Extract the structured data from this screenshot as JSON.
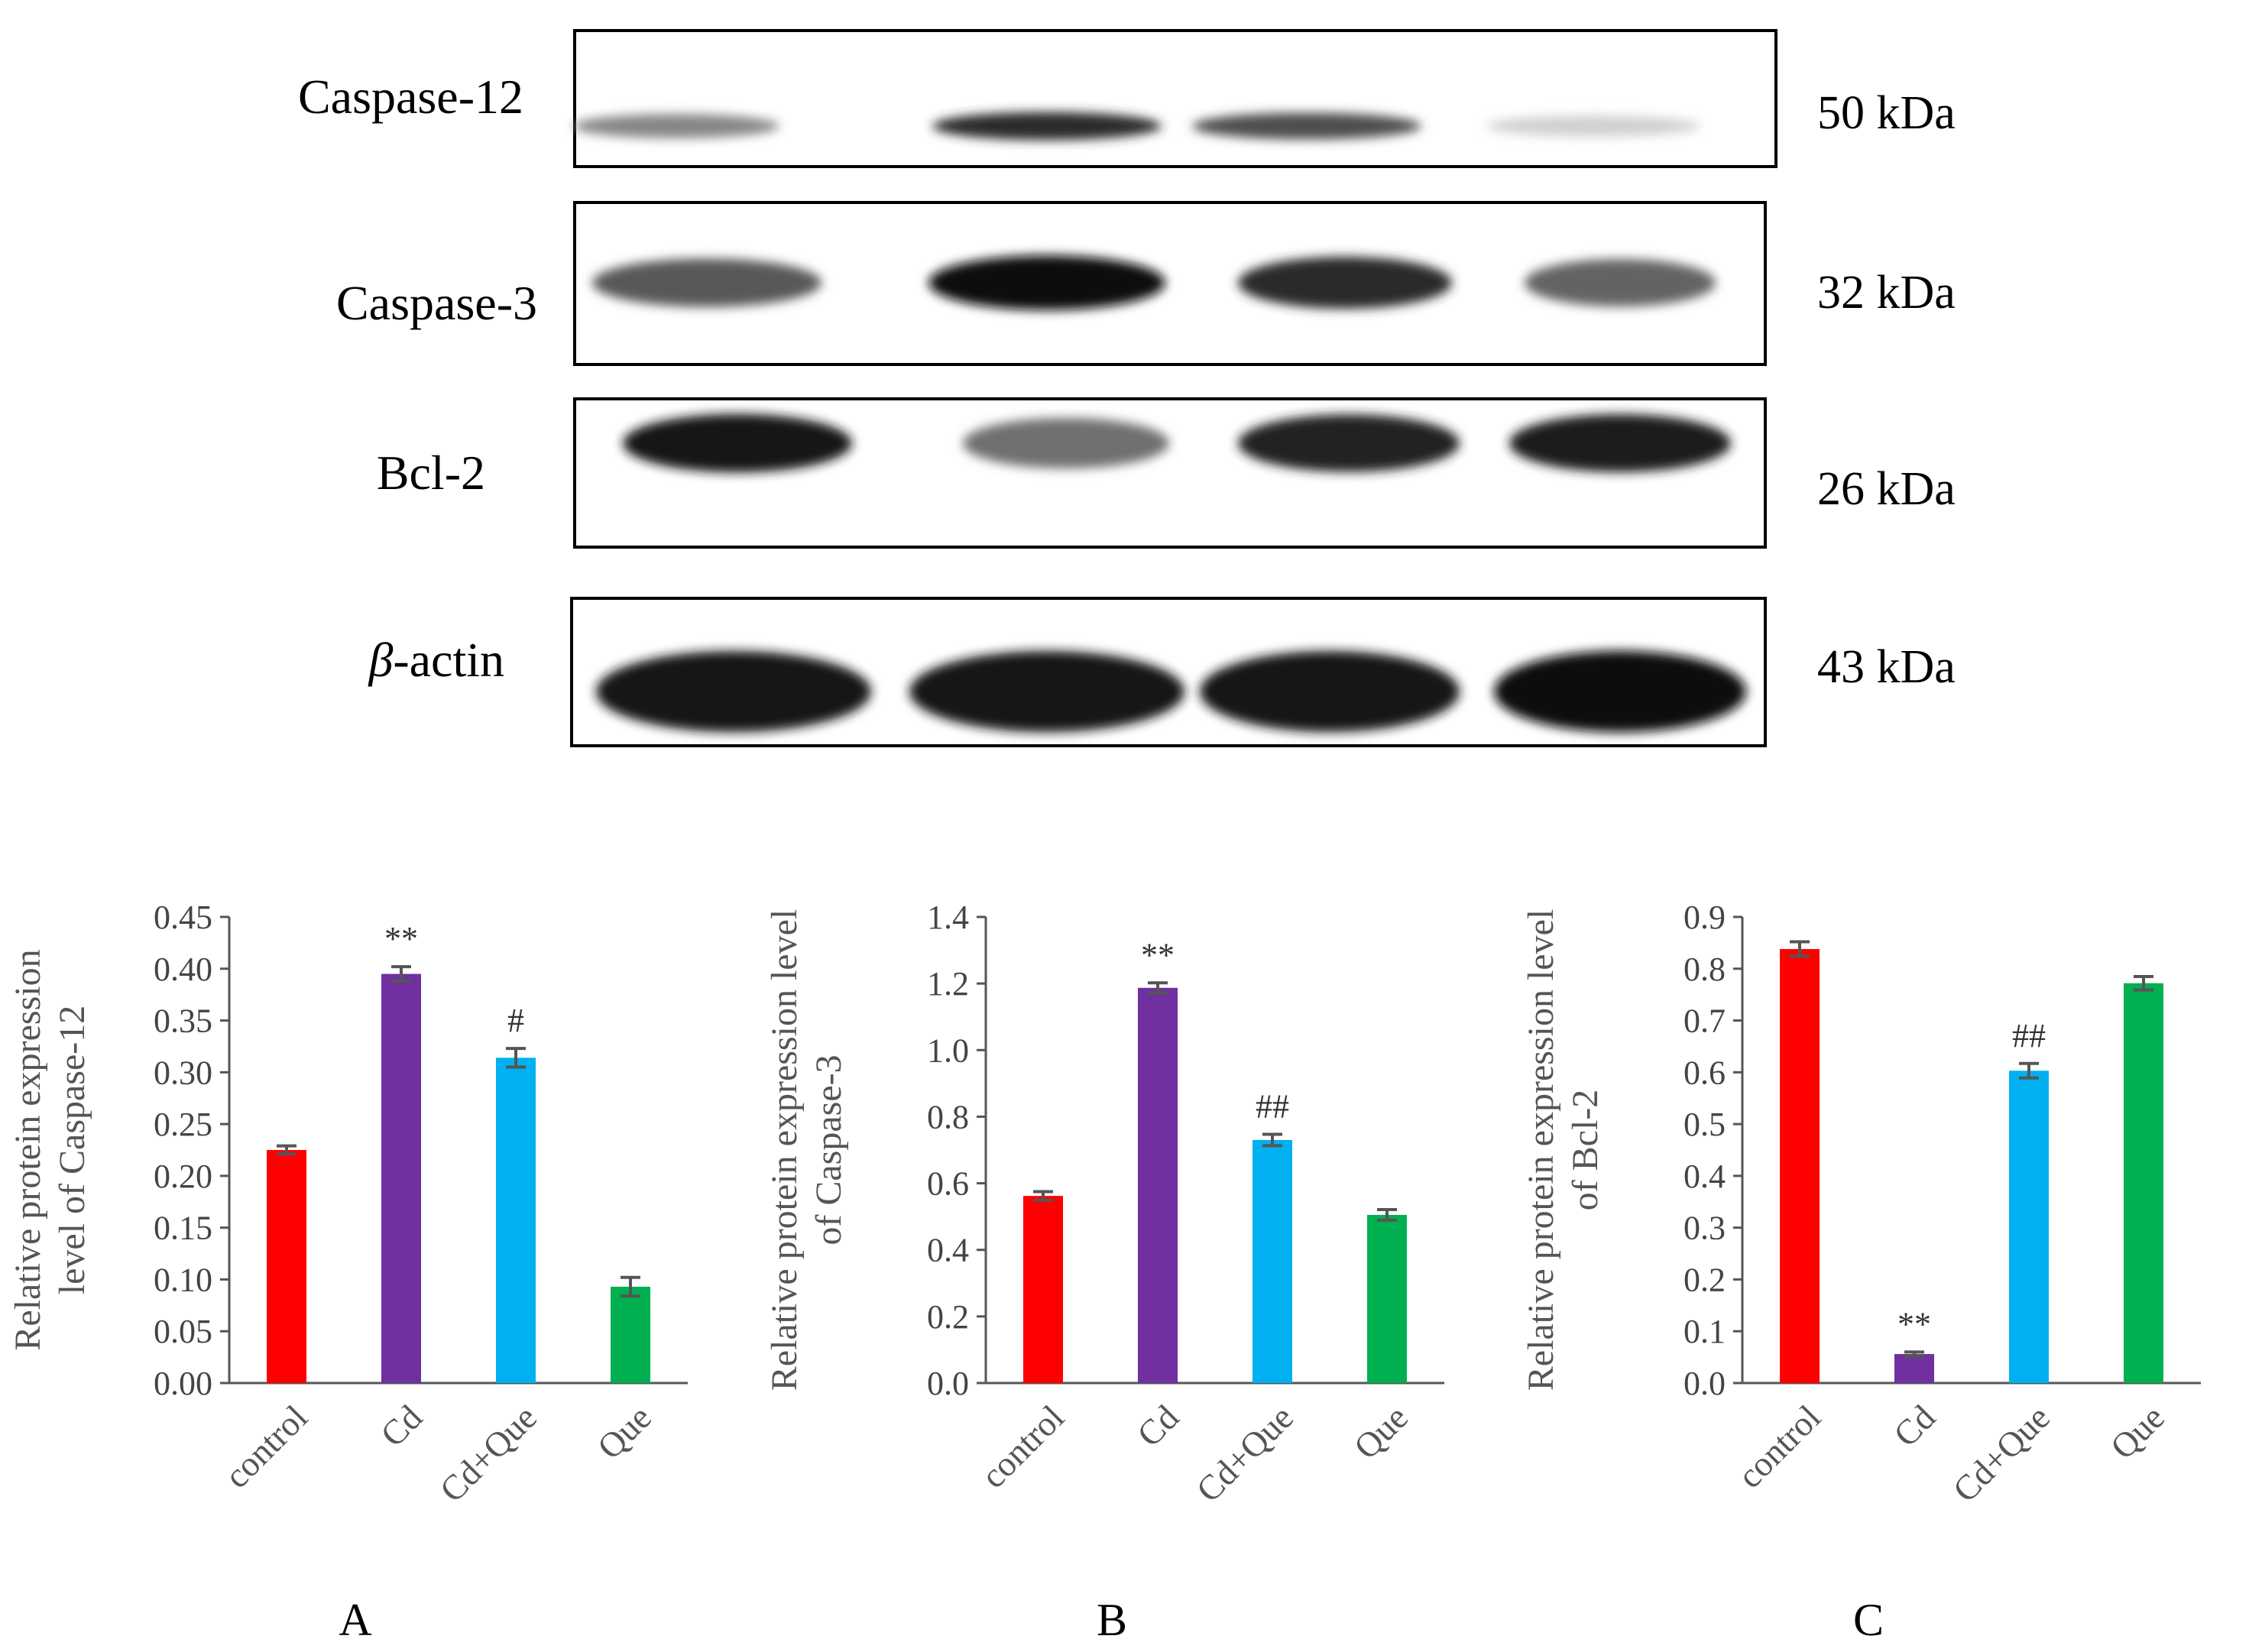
{
  "blot": {
    "rows": [
      {
        "protein": "Caspase-12",
        "protein_prefix": "",
        "mw": "50 kDa",
        "intensities": [
          0.45,
          0.85,
          0.7,
          0.12
        ]
      },
      {
        "protein": "Caspase-3",
        "protein_prefix": "",
        "mw": "32 kDa",
        "intensities": [
          0.65,
          1.0,
          0.85,
          0.6
        ]
      },
      {
        "protein": "-actin",
        "protein_prefix": "β",
        "mw": "43 kDa",
        "intensities": [
          0.95,
          0.95,
          0.95,
          0.97
        ]
      }
    ],
    "row_bcl2": {
      "protein": "Bcl-2",
      "protein_prefix": "",
      "mw": "26 kDa",
      "intensities": [
        0.95,
        0.55,
        0.9,
        0.92
      ]
    }
  },
  "chart_data": [
    {
      "type": "bar",
      "panel_letter": "A",
      "categories": [
        "control",
        "Cd",
        "Cd+Que",
        "Que"
      ],
      "values": [
        0.225,
        0.395,
        0.314,
        0.093
      ],
      "errors": [
        0.004,
        0.007,
        0.009,
        0.009
      ],
      "annotations": [
        "",
        "**",
        "#",
        ""
      ],
      "colors": [
        "#ff0000",
        "#7030a0",
        "#00b0f0",
        "#00b050"
      ],
      "ylabel_lines": [
        "Relative protein expression",
        "level of Caspase-12"
      ],
      "ylim": [
        0,
        0.45
      ],
      "yticks": [
        "0.00",
        "0.05",
        "0.10",
        "0.15",
        "0.20",
        "0.25",
        "0.30",
        "0.35",
        "0.40",
        "0.45"
      ],
      "grid": false
    },
    {
      "type": "bar",
      "panel_letter": "B",
      "categories": [
        "control",
        "Cd",
        "Cd+Que",
        "Que"
      ],
      "values": [
        0.562,
        1.187,
        0.73,
        0.505
      ],
      "errors": [
        0.013,
        0.015,
        0.017,
        0.016
      ],
      "annotations": [
        "",
        "**",
        "##",
        ""
      ],
      "colors": [
        "#ff0000",
        "#7030a0",
        "#00b0f0",
        "#00b050"
      ],
      "ylabel_lines": [
        "Relative protein expression  level",
        "of Caspase-3"
      ],
      "ylim": [
        0,
        1.4
      ],
      "yticks": [
        "0.0",
        "0.2",
        "0.4",
        "0.6",
        "0.8",
        "1.0",
        "1.2",
        "1.4"
      ],
      "grid": false
    },
    {
      "type": "bar",
      "panel_letter": "C",
      "categories": [
        "control",
        "Cd",
        "Cd+Que",
        "Que"
      ],
      "values": [
        0.838,
        0.056,
        0.603,
        0.772
      ],
      "errors": [
        0.014,
        0.004,
        0.014,
        0.013
      ],
      "annotations": [
        "",
        "**",
        "##",
        ""
      ],
      "colors": [
        "#ff0000",
        "#7030a0",
        "#00b0f0",
        "#00b050"
      ],
      "ylabel_lines": [
        "Relative protein expression  level",
        "of Bcl-2"
      ],
      "ylim": [
        0,
        0.9
      ],
      "yticks": [
        "0.0",
        "0.1",
        "0.2",
        "0.3",
        "0.4",
        "0.5",
        "0.6",
        "0.7",
        "0.8",
        "0.9"
      ],
      "grid": false
    }
  ]
}
